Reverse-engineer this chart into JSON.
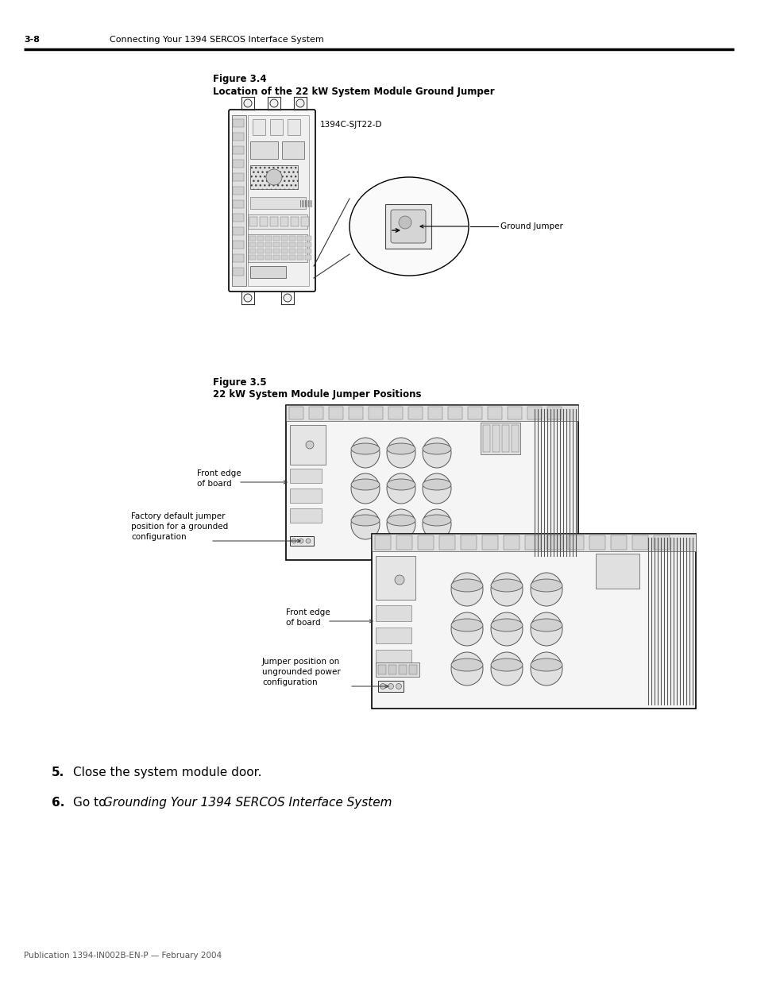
{
  "page_number": "3-8",
  "header_text": "Connecting Your 1394 SERCOS Interface System",
  "footer_text": "Publication 1394-IN002B-EN-P — February 2004",
  "background_color": "#ffffff",
  "fig4_title_line1": "Figure 3.4",
  "fig4_title_line2": "Location of the 22 kW System Module Ground Jumper",
  "fig4_label1": "1394C-SJT22-D",
  "fig4_label2": "Ground Jumper",
  "fig5_title_line1": "Figure 3.5",
  "fig5_title_line2": "22 kW System Module Jumper Positions",
  "fig5_fe1_l1": "Front edge",
  "fig5_fe1_l2": "of board",
  "fig5_jmp1_l1": "Factory default jumper",
  "fig5_jmp1_l2": "position for a grounded",
  "fig5_jmp1_l3": "configuration",
  "fig5_fe2_l1": "Front edge",
  "fig5_fe2_l2": "of board",
  "fig5_jmp2_l1": "Jumper position on",
  "fig5_jmp2_l2": "ungrounded power",
  "fig5_jmp2_l3": "configuration",
  "step5_num": "5.",
  "step5_text": "Close the system module door.",
  "step6_num": "6.",
  "step6_pre": "Go to ",
  "step6_italic": "Grounding Your 1394 SERCOS Interface System",
  "step6_post": "."
}
